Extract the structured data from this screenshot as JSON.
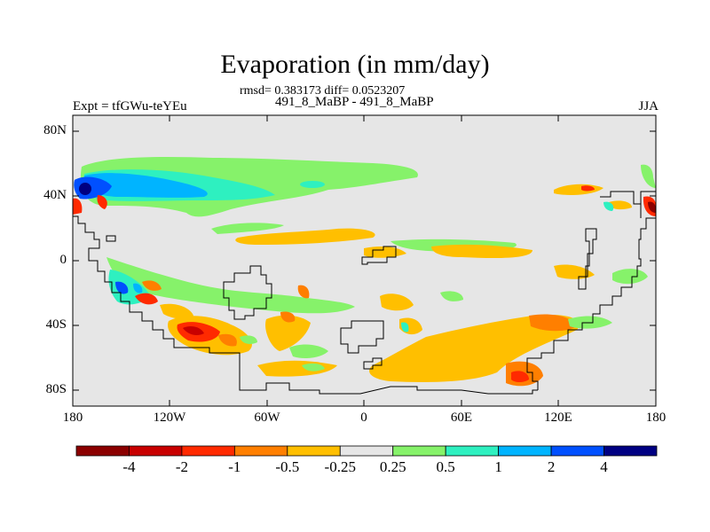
{
  "header": {
    "title": "Evaporation (in mm/day)",
    "stats": "rmsd= 0.383173 diff= 0.0523207",
    "subtitle": "491_8_MaBP - 491_8_MaBP",
    "left_label": "Expt = tfGWu-teYEu",
    "right_label": "JJA"
  },
  "axes": {
    "y_ticks": [
      "80N",
      "40N",
      "0",
      "40S",
      "80S"
    ],
    "x_ticks": [
      "180",
      "120W",
      "60W",
      "0",
      "60E",
      "120E",
      "180"
    ]
  },
  "colorbar": {
    "colors": [
      "#8b0000",
      "#c80000",
      "#ff2a00",
      "#ff7f00",
      "#ffbf00",
      "#e6e6e6",
      "#86f26a",
      "#2ef0c0",
      "#00b4ff",
      "#0050ff",
      "#000082"
    ],
    "labels": [
      "-4",
      "-2",
      "-1",
      "-0.5",
      "-0.25",
      "0.25",
      "0.5",
      "1",
      "2",
      "4"
    ]
  },
  "map": {
    "projection": "cylindrical equidistant",
    "lon_range": [
      -180,
      180
    ],
    "lat_range": [
      -90,
      90
    ],
    "background_color": "#e6e6e6",
    "coastline_color": "#000000"
  }
}
